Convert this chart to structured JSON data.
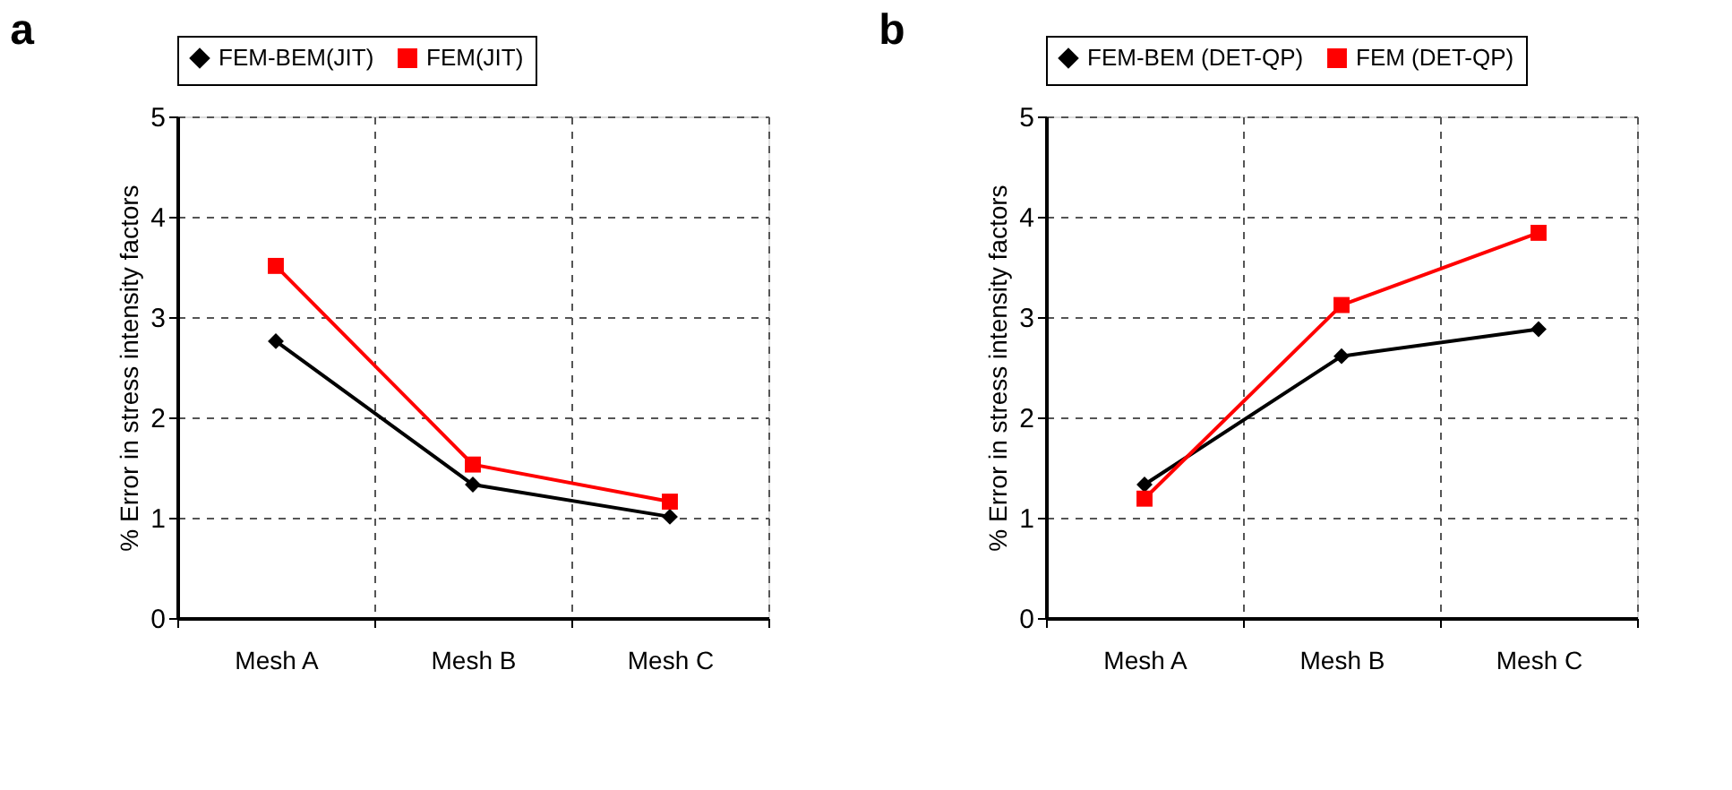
{
  "chart_data": [
    {
      "type": "line",
      "title": "a",
      "ylabel": "% Error in stress intensity factors",
      "categories": [
        "Mesh A",
        "Mesh B",
        "Mesh C"
      ],
      "series": [
        {
          "name": "FEM-BEM(JIT)",
          "color": "#000000",
          "marker": "diamond",
          "values": [
            2.76,
            1.33,
            1.01
          ]
        },
        {
          "name": "FEM(JIT)",
          "color": "#ff0000",
          "marker": "square",
          "values": [
            3.51,
            1.53,
            1.16
          ]
        }
      ],
      "ylim": [
        0,
        5
      ],
      "yticks": [
        0,
        1,
        2,
        3,
        4,
        5
      ],
      "grid": true,
      "legend": "top",
      "line_style": "solid"
    },
    {
      "type": "line",
      "title": "b",
      "ylabel": "% Error in stress intensity factors",
      "categories": [
        "Mesh A",
        "Mesh B",
        "Mesh C"
      ],
      "series": [
        {
          "name": "FEM-BEM (DET-QP)",
          "color": "#000000",
          "marker": "diamond",
          "values": [
            1.33,
            2.61,
            2.88
          ]
        },
        {
          "name": "FEM (DET-QP)",
          "color": "#ff0000",
          "marker": "square",
          "values": [
            1.19,
            3.12,
            3.84
          ]
        }
      ],
      "ylim": [
        0,
        5
      ],
      "yticks": [
        0,
        1,
        2,
        3,
        4,
        5
      ],
      "grid": true,
      "legend": "top",
      "line_style": "solid"
    }
  ]
}
